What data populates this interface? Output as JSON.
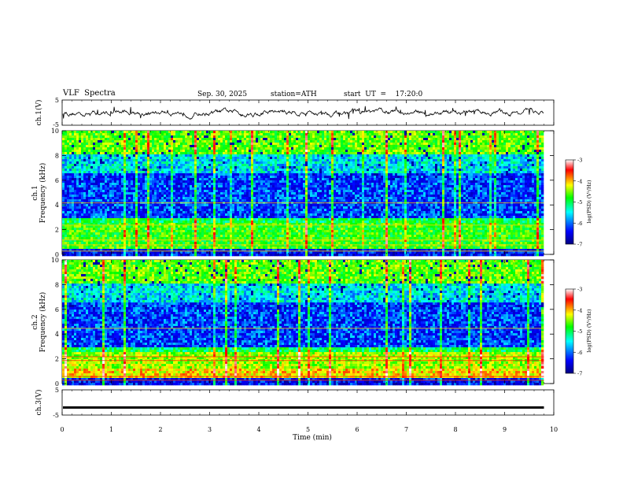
{
  "header": {
    "title": "VLF  Spectra",
    "date": "Sep. 30, 2025",
    "station": "station=ATH",
    "start": "start  UT  =    17:20:0"
  },
  "chart_data": [
    {
      "type": "line",
      "name": "ch1-waveform",
      "ylabel": "ch.1(V)",
      "ylim": [
        -5,
        5
      ],
      "yticks": [
        "5",
        "-5"
      ],
      "xlim": [
        0,
        10
      ]
    },
    {
      "type": "heatmap",
      "name": "ch1-spectrogram",
      "ylabel": "Frequency (kHz)",
      "ylabel_prefix": "ch.1",
      "ylim": [
        0,
        10
      ],
      "yticks": [
        "0",
        "2",
        "4",
        "6",
        "8",
        "10"
      ],
      "xlim": [
        0,
        9.8
      ],
      "colorbar": {
        "label": "log(PSD) (V²/Hz)",
        "range": [
          -7,
          -3
        ],
        "ticks": [
          "-3",
          "-4",
          "-5",
          "-6",
          "-7"
        ]
      }
    },
    {
      "type": "heatmap",
      "name": "ch2-spectrogram",
      "ylabel": "Frequency (kHz)",
      "ylabel_prefix": "ch.2",
      "ylim": [
        0,
        10
      ],
      "yticks": [
        "0",
        "2",
        "4",
        "6",
        "8",
        "10"
      ],
      "xlim": [
        0,
        9.8
      ],
      "colorbar": {
        "label": "log(PSD) (V²/Hz)",
        "range": [
          -7,
          -3
        ],
        "ticks": [
          "-3",
          "-4",
          "-5",
          "-6",
          "-7"
        ]
      }
    },
    {
      "type": "line",
      "name": "ch3-waveform",
      "ylabel": "ch.3(V)",
      "ylim": [
        -5,
        5
      ],
      "yticks": [
        "5",
        "-5"
      ],
      "level": -2
    }
  ],
  "xaxis": {
    "label": "Time  (min)",
    "range": [
      0,
      10
    ],
    "ticks": [
      "0",
      "1",
      "2",
      "3",
      "4",
      "5",
      "6",
      "7",
      "8",
      "9",
      "10"
    ]
  },
  "colors": {
    "jet": [
      "#000080",
      "#0000ff",
      "#00ffff",
      "#00ff00",
      "#ffff00",
      "#ff0000",
      "#ffffff"
    ]
  }
}
